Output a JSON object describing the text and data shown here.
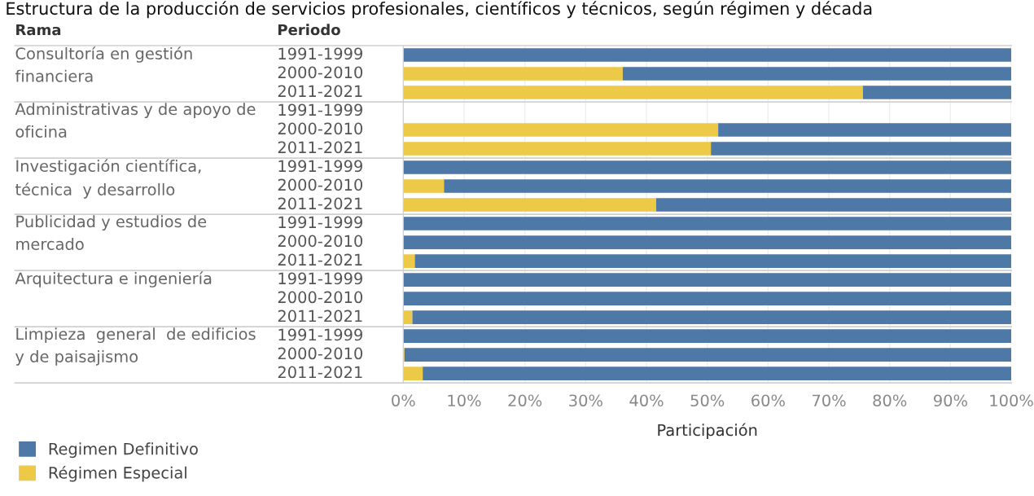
{
  "chart_data": {
    "type": "bar",
    "orientation": "horizontal",
    "stacked": true,
    "title": "Estructura de la producción de servicios profesionales, científicos y técnicos, según régimen y década",
    "xlabel": "Participación",
    "categories": [
      "1991-1999",
      "2000-2010",
      "2011-2021",
      "1991-1999",
      "2000-2010",
      "2011-2021",
      "1991-1999",
      "2000-2010",
      "2011-2021",
      "1991-1999",
      "2000-2010",
      "2011-2021",
      "1991-1999",
      "2000-2010",
      "2011-2021",
      "1991-1999",
      "2000-2010",
      "2011-2021"
    ],
    "series": [
      {
        "name": "Régimen Especial",
        "color": "#edc948",
        "values": [
          0,
          36.1,
          75.6,
          null,
          51.8,
          50.6,
          0,
          6.7,
          41.6,
          0,
          0,
          1.9,
          0,
          0,
          1.5,
          0,
          0.2,
          3.2
        ]
      },
      {
        "name": "Regimen Definitivo",
        "color": "#4e79a7",
        "values": [
          100,
          63.9,
          24.4,
          null,
          48.2,
          49.4,
          100,
          93.3,
          58.4,
          100,
          100,
          98.1,
          100,
          100,
          98.5,
          100,
          99.8,
          96.8
        ]
      }
    ],
    "annotations": [
      "Rama",
      "Periodo",
      "Consultoría en gestión\nfinanciera",
      "Administrativas y de apoyo de\noficina",
      "Investigación científica,\ntécnica  y desarrollo",
      "Publicidad y estudios de\nmercado",
      "Arquitectura e ingeniería",
      "Limpieza  general  de edificios\ny de paisajismo"
    ],
    "xlim": [
      0,
      100
    ],
    "xticks": [
      {
        "value": 0,
        "label": "0%"
      },
      {
        "value": 10,
        "label": "10%"
      },
      {
        "value": 20,
        "label": "20%"
      },
      {
        "value": 30,
        "label": "30%"
      },
      {
        "value": 40,
        "label": "40%"
      },
      {
        "value": 50,
        "label": "50%"
      },
      {
        "value": 60,
        "label": "60%"
      },
      {
        "value": 70,
        "label": "70%"
      },
      {
        "value": 80,
        "label": "80%"
      },
      {
        "value": 90,
        "label": "90%"
      },
      {
        "value": 100,
        "label": "100%"
      }
    ],
    "grid": "x",
    "legend": "bottom left"
  }
}
